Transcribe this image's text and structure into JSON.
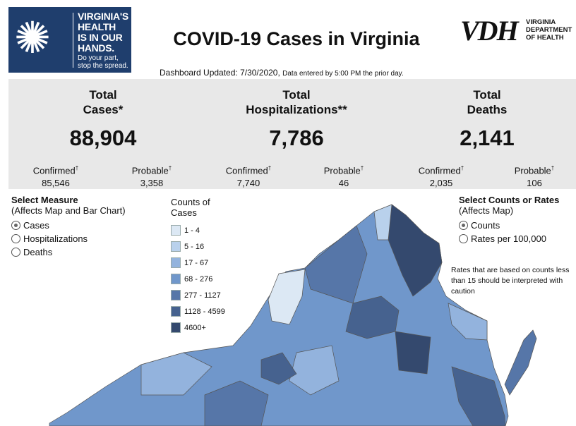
{
  "logo_left": {
    "lines": [
      "VIRGINIA'S",
      "HEALTH",
      "IS IN OUR",
      "HANDS."
    ],
    "tagline": [
      "Do your part,",
      "stop the spread."
    ]
  },
  "title": "COVID-19 Cases in Virginia",
  "logo_right": {
    "mark": "VDH",
    "lines": [
      "VIRGINIA",
      "DEPARTMENT",
      "OF HEALTH"
    ]
  },
  "updated": {
    "label": "Dashboard Updated: 7/30/2020,",
    "note": "Data entered by 5:00 PM the prior day."
  },
  "stats": [
    {
      "title1": "Total",
      "title2": "Cases*",
      "value": "88,904",
      "confirmed_label": "Confirmed",
      "confirmed": "85,546",
      "probable_label": "Probable",
      "probable": "3,358"
    },
    {
      "title1": "Total",
      "title2": "Hospitalizations**",
      "value": "7,786",
      "confirmed_label": "Confirmed",
      "confirmed": "7,740",
      "probable_label": "Probable",
      "probable": "46"
    },
    {
      "title1": "Total",
      "title2": "Deaths",
      "value": "2,141",
      "confirmed_label": "Confirmed",
      "confirmed": "2,035",
      "probable_label": "Probable",
      "probable": "106"
    }
  ],
  "dagger": "†",
  "measure": {
    "title": "Select Measure",
    "subtitle": "(Affects Map and Bar Chart)",
    "options": [
      "Cases",
      "Hospitalizations",
      "Deaths"
    ],
    "selected": "Cases"
  },
  "legend": {
    "title1": "Counts of",
    "title2": "Cases",
    "bins": [
      {
        "label": "1 - 4",
        "color": "#dce8f4"
      },
      {
        "label": "5 - 16",
        "color": "#b9d1ec"
      },
      {
        "label": "17 - 67",
        "color": "#93b3dd"
      },
      {
        "label": "68 - 276",
        "color": "#7097cb"
      },
      {
        "label": "277 - 1127",
        "color": "#5676a8"
      },
      {
        "label": "1128 - 4599",
        "color": "#46628f"
      },
      {
        "label": "4600+",
        "color": "#34496e"
      }
    ]
  },
  "counts_rates": {
    "title": "Select Counts or Rates",
    "subtitle": "(Affects Map)",
    "options": [
      "Counts",
      "Rates per 100,000"
    ],
    "selected": "Counts"
  },
  "caution": "Rates that are based on counts less than 15 should be interpreted with caution"
}
